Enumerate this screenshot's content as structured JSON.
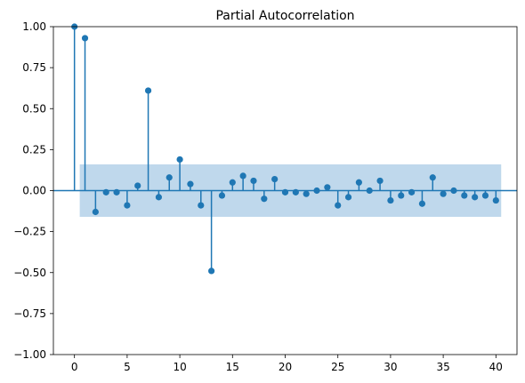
{
  "chart_data": {
    "type": "stem",
    "title": "Partial Autocorrelation",
    "xlabel": "",
    "ylabel": "",
    "xlim": [
      -2,
      42
    ],
    "ylim": [
      -1.0,
      1.0
    ],
    "xticks": [
      0,
      5,
      10,
      15,
      20,
      25,
      30,
      35,
      40
    ],
    "yticks": [
      -1.0,
      -0.75,
      -0.5,
      -0.25,
      0.0,
      0.25,
      0.5,
      0.75,
      1.0
    ],
    "xtick_labels": [
      "0",
      "5",
      "10",
      "15",
      "20",
      "25",
      "30",
      "35",
      "40"
    ],
    "ytick_labels": [
      "−1.00",
      "−0.75",
      "−0.50",
      "−0.25",
      "0.00",
      "0.25",
      "0.50",
      "0.75",
      "1.00"
    ],
    "confidence_band": {
      "x_range": [
        0.5,
        40.5
      ],
      "lower": -0.16,
      "upper": 0.16
    },
    "grid": false,
    "colors": {
      "stem": "#1f77b4",
      "band": "#a9cbe6"
    },
    "x": [
      0,
      1,
      2,
      3,
      4,
      5,
      6,
      7,
      8,
      9,
      10,
      11,
      12,
      13,
      14,
      15,
      16,
      17,
      18,
      19,
      20,
      21,
      22,
      23,
      24,
      25,
      26,
      27,
      28,
      29,
      30,
      31,
      32,
      33,
      34,
      35,
      36,
      37,
      38,
      39,
      40
    ],
    "values": [
      1.0,
      0.93,
      -0.13,
      -0.01,
      -0.01,
      -0.09,
      0.03,
      0.61,
      -0.04,
      0.08,
      0.19,
      0.04,
      -0.09,
      -0.49,
      -0.03,
      0.05,
      0.09,
      0.06,
      -0.05,
      0.07,
      -0.01,
      -0.01,
      -0.02,
      0.0,
      0.02,
      -0.09,
      -0.04,
      0.05,
      0.0,
      0.06,
      -0.06,
      -0.03,
      -0.01,
      -0.08,
      0.08,
      -0.02,
      0.0,
      -0.03,
      -0.04,
      -0.03,
      -0.06
    ]
  }
}
